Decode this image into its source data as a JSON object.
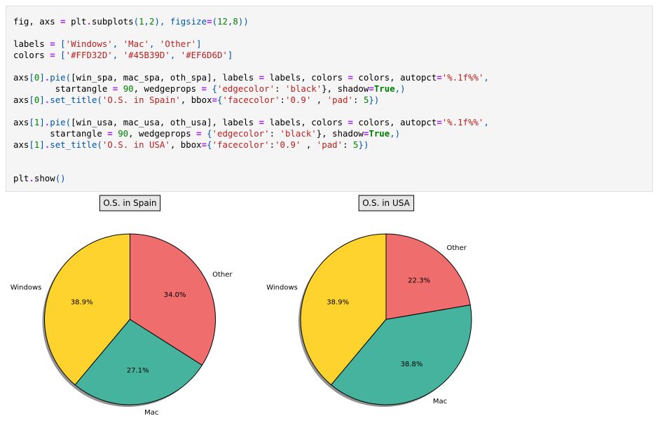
{
  "code_cell": {
    "lines": [
      [
        [
          "fig, axs ",
          ""
        ],
        [
          "=",
          "op"
        ],
        [
          " plt",
          "",
          ""
        ],
        [
          ".",
          "op"
        ],
        [
          "subplots",
          "",
          ""
        ],
        [
          "(",
          "p"
        ],
        [
          "1",
          "num"
        ],
        [
          ",",
          "p"
        ],
        [
          "2",
          "num"
        ],
        [
          "), figsize",
          "p"
        ],
        [
          "=",
          "op"
        ],
        [
          "(",
          "p"
        ],
        [
          "12",
          "num"
        ],
        [
          ",",
          "p"
        ],
        [
          "8",
          "num"
        ],
        [
          "))",
          "p"
        ]
      ],
      [],
      [
        [
          "labels ",
          ""
        ],
        [
          "=",
          "op"
        ],
        [
          " ",
          ""
        ],
        [
          "[",
          "p"
        ],
        [
          "'Windows'",
          "str"
        ],
        [
          ", ",
          "p"
        ],
        [
          "'Mac'",
          "str"
        ],
        [
          ", ",
          "p"
        ],
        [
          "'Other'",
          "str"
        ],
        [
          "]",
          "p"
        ]
      ],
      [
        [
          "colors ",
          ""
        ],
        [
          "=",
          "op"
        ],
        [
          " ",
          ""
        ],
        [
          "[",
          "p"
        ],
        [
          "'#FFD32D'",
          "str"
        ],
        [
          ", ",
          "p"
        ],
        [
          "'#45B39D'",
          "str"
        ],
        [
          ", ",
          "p"
        ],
        [
          "'#EF6D6D'",
          "str"
        ],
        [
          "]",
          "p"
        ]
      ],
      [],
      [
        [
          "axs",
          ""
        ],
        [
          "[",
          "p"
        ],
        [
          "0",
          "num"
        ],
        [
          "]",
          "p"
        ],
        [
          ".",
          "op"
        ],
        [
          "pie(",
          "p"
        ],
        [
          "[win_spa, mac_spa, oth_spa], labels ",
          ""
        ],
        [
          "=",
          "op"
        ],
        [
          " labels, colors ",
          ""
        ],
        [
          "=",
          "op"
        ],
        [
          " colors, autopct",
          ""
        ],
        [
          "=",
          "op"
        ],
        [
          "'%.1f%%'",
          "str"
        ],
        [
          ",",
          "p"
        ]
      ],
      [
        [
          "        startangle ",
          ""
        ],
        [
          "=",
          "op"
        ],
        [
          " ",
          ""
        ],
        [
          "90",
          "num"
        ],
        [
          ", wedgeprops ",
          ""
        ],
        [
          "=",
          "op"
        ],
        [
          " ",
          ""
        ],
        [
          "{",
          "p"
        ],
        [
          "'edgecolor'",
          "str"
        ],
        [
          ": ",
          ""
        ],
        [
          "'black'",
          "str"
        ],
        [
          "}",
          ""
        ],
        [
          ", shadow",
          ""
        ],
        [
          "=",
          "op"
        ],
        [
          "True",
          "kw"
        ],
        [
          ",)",
          "p"
        ]
      ],
      [
        [
          "axs",
          ""
        ],
        [
          "[",
          "p"
        ],
        [
          "0",
          "num"
        ],
        [
          "]",
          "p"
        ],
        [
          ".",
          "op"
        ],
        [
          "set_title(",
          "p"
        ],
        [
          "'O.S. in Spain'",
          "str"
        ],
        [
          ", bbox",
          ""
        ],
        [
          "=",
          "op"
        ],
        [
          "{",
          "p"
        ],
        [
          "'facecolor'",
          "str"
        ],
        [
          ":",
          ""
        ],
        [
          "'0.9'",
          "str"
        ],
        [
          " , ",
          ""
        ],
        [
          "'pad'",
          "str"
        ],
        [
          ": ",
          ""
        ],
        [
          "5",
          "num"
        ],
        [
          "})",
          "p"
        ]
      ],
      [],
      [
        [
          "axs",
          ""
        ],
        [
          "[",
          "p"
        ],
        [
          "1",
          "num"
        ],
        [
          "]",
          "p"
        ],
        [
          ".",
          "op"
        ],
        [
          "pie(",
          "p"
        ],
        [
          "[win_usa, mac_usa, oth_usa], labels ",
          ""
        ],
        [
          "=",
          "op"
        ],
        [
          " labels, colors ",
          ""
        ],
        [
          "=",
          "op"
        ],
        [
          " colors, autopct",
          ""
        ],
        [
          "=",
          "op"
        ],
        [
          "'%.1f%%'",
          "str"
        ],
        [
          ",",
          "p"
        ]
      ],
      [
        [
          "       startangle ",
          ""
        ],
        [
          "=",
          "op"
        ],
        [
          " ",
          ""
        ],
        [
          "90",
          "num"
        ],
        [
          ", wedgeprops ",
          ""
        ],
        [
          "=",
          "op"
        ],
        [
          " ",
          ""
        ],
        [
          "{",
          "p"
        ],
        [
          "'edgecolor'",
          "str"
        ],
        [
          ": ",
          ""
        ],
        [
          "'black'",
          "str"
        ],
        [
          "}",
          ""
        ],
        [
          ", shadow",
          ""
        ],
        [
          "=",
          "op"
        ],
        [
          "True",
          "kw"
        ],
        [
          ",)",
          "p"
        ]
      ],
      [
        [
          "axs",
          ""
        ],
        [
          "[",
          "p"
        ],
        [
          "1",
          "num"
        ],
        [
          "]",
          "p"
        ],
        [
          ".",
          "op"
        ],
        [
          "set_title(",
          "p"
        ],
        [
          "'O.S. in USA'",
          "str"
        ],
        [
          ", bbox",
          ""
        ],
        [
          "=",
          "op"
        ],
        [
          "{",
          "p"
        ],
        [
          "'facecolor'",
          "str"
        ],
        [
          ":",
          ""
        ],
        [
          "'0.9'",
          "str"
        ],
        [
          " , ",
          ""
        ],
        [
          "'pad'",
          "str"
        ],
        [
          ": ",
          ""
        ],
        [
          "5",
          "num"
        ],
        [
          "})",
          "p"
        ]
      ],
      [],
      [],
      [
        [
          "plt",
          ""
        ],
        [
          ".",
          "op"
        ],
        [
          "show",
          "",
          ""
        ],
        [
          "()",
          "p"
        ]
      ]
    ]
  },
  "chart_data": [
    {
      "type": "pie",
      "title": "O.S. in Spain",
      "startangle": 90,
      "shadow": true,
      "edgecolor": "#000000",
      "title_box_facecolor": "#e6e6e6",
      "slices": [
        {
          "label": "Windows",
          "value": 38.9,
          "pct_label": "38.9%",
          "color": "#FFD32D"
        },
        {
          "label": "Mac",
          "value": 27.1,
          "pct_label": "27.1%",
          "color": "#45B39D"
        },
        {
          "label": "Other",
          "value": 34.0,
          "pct_label": "34.0%",
          "color": "#EF6D6D"
        }
      ]
    },
    {
      "type": "pie",
      "title": "O.S. in USA",
      "startangle": 90,
      "shadow": true,
      "edgecolor": "#000000",
      "title_box_facecolor": "#e6e6e6",
      "slices": [
        {
          "label": "Windows",
          "value": 38.9,
          "pct_label": "38.9%",
          "color": "#FFD32D"
        },
        {
          "label": "Mac",
          "value": 38.8,
          "pct_label": "38.8%",
          "color": "#45B39D"
        },
        {
          "label": "Other",
          "value": 22.3,
          "pct_label": "22.3%",
          "color": "#EF6D6D"
        }
      ]
    }
  ]
}
